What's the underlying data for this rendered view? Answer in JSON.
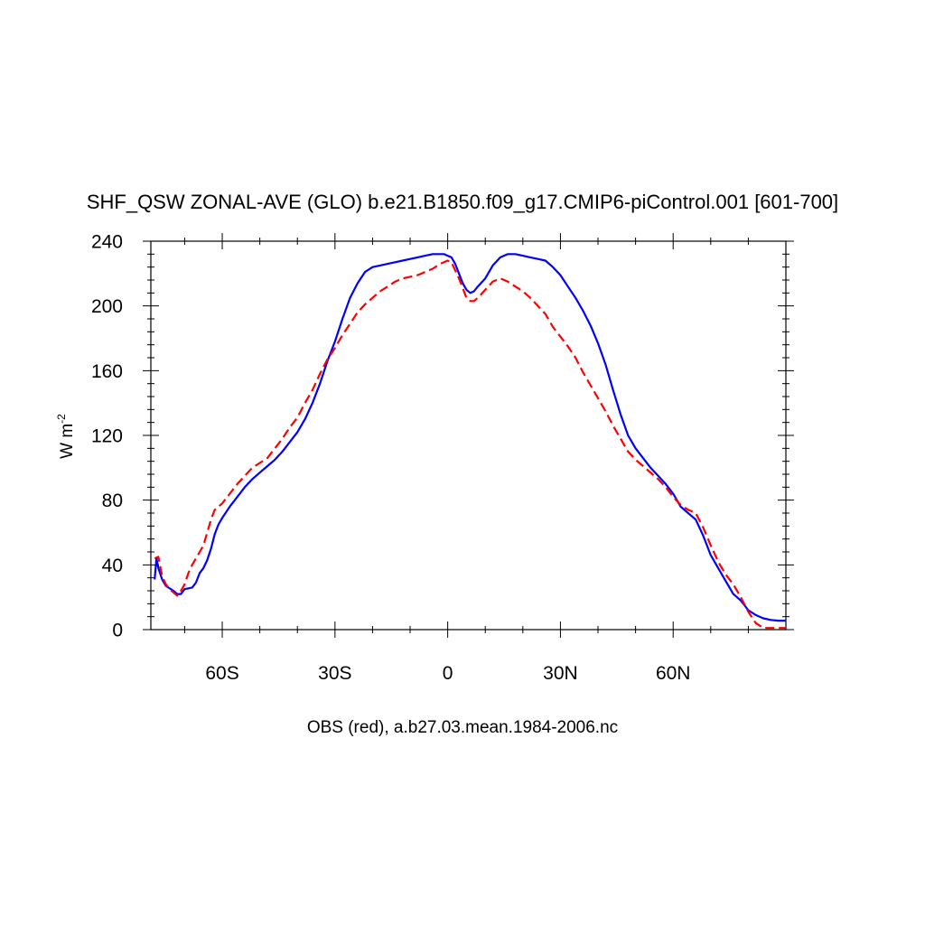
{
  "chart_data": {
    "type": "line",
    "title": "SHF_QSW ZONAL-AVE (GLO) b.e21.B1850.f09_g17.CMIP6-piControl.001 [601-700]",
    "xlabel": "OBS (red), a.b27.03.mean.1984-2006.nc",
    "ylabel": "W m",
    "ylabel_sup": "-2",
    "xlim": [
      -79,
      90
    ],
    "ylim": [
      0,
      240
    ],
    "x_ticks": [
      {
        "value": -60,
        "label": "60S"
      },
      {
        "value": -30,
        "label": "30S"
      },
      {
        "value": 0,
        "label": "0"
      },
      {
        "value": 30,
        "label": "30N"
      },
      {
        "value": 60,
        "label": "60N"
      }
    ],
    "y_ticks": [
      {
        "value": 0,
        "label": "0"
      },
      {
        "value": 40,
        "label": "40"
      },
      {
        "value": 80,
        "label": "80"
      },
      {
        "value": 120,
        "label": "120"
      },
      {
        "value": 160,
        "label": "160"
      },
      {
        "value": 200,
        "label": "200"
      },
      {
        "value": 240,
        "label": "240"
      }
    ],
    "grid": false,
    "legend": "none",
    "series": [
      {
        "color": "#0000ff",
        "dash": "solid",
        "points": [
          [
            -78,
            31
          ],
          [
            -77.5,
            44
          ],
          [
            -77,
            38
          ],
          [
            -76,
            31
          ],
          [
            -75,
            27
          ],
          [
            -73,
            24
          ],
          [
            -72,
            22
          ],
          [
            -71,
            22
          ],
          [
            -70,
            25
          ],
          [
            -68,
            26
          ],
          [
            -67,
            29
          ],
          [
            -66,
            35
          ],
          [
            -65,
            38
          ],
          [
            -64,
            43
          ],
          [
            -63,
            50
          ],
          [
            -62,
            59
          ],
          [
            -61,
            65
          ],
          [
            -60,
            69
          ],
          [
            -58,
            76
          ],
          [
            -56,
            82
          ],
          [
            -54,
            88
          ],
          [
            -52,
            93
          ],
          [
            -50,
            97
          ],
          [
            -48,
            101
          ],
          [
            -46,
            105
          ],
          [
            -44,
            110
          ],
          [
            -42,
            116
          ],
          [
            -40,
            122
          ],
          [
            -38,
            130
          ],
          [
            -36,
            140
          ],
          [
            -34,
            152
          ],
          [
            -32,
            166
          ],
          [
            -30,
            178
          ],
          [
            -28,
            192
          ],
          [
            -26,
            205
          ],
          [
            -24,
            214
          ],
          [
            -22,
            221
          ],
          [
            -20,
            224
          ],
          [
            -18,
            225
          ],
          [
            -16,
            226
          ],
          [
            -14,
            227
          ],
          [
            -12,
            228
          ],
          [
            -10,
            229
          ],
          [
            -8,
            230
          ],
          [
            -6,
            231
          ],
          [
            -4,
            232
          ],
          [
            -2,
            232
          ],
          [
            -1,
            232
          ],
          [
            0,
            231
          ],
          [
            1,
            230
          ],
          [
            2,
            226
          ],
          [
            3,
            220
          ],
          [
            4,
            214
          ],
          [
            5,
            210
          ],
          [
            6,
            208
          ],
          [
            7,
            209
          ],
          [
            8,
            212
          ],
          [
            10,
            217
          ],
          [
            12,
            225
          ],
          [
            14,
            230
          ],
          [
            16,
            232
          ],
          [
            18,
            232
          ],
          [
            20,
            231
          ],
          [
            22,
            230
          ],
          [
            24,
            229
          ],
          [
            26,
            228
          ],
          [
            28,
            224
          ],
          [
            30,
            219
          ],
          [
            32,
            212
          ],
          [
            34,
            205
          ],
          [
            36,
            197
          ],
          [
            38,
            188
          ],
          [
            40,
            177
          ],
          [
            42,
            164
          ],
          [
            44,
            148
          ],
          [
            46,
            133
          ],
          [
            48,
            120
          ],
          [
            50,
            112
          ],
          [
            52,
            106
          ],
          [
            54,
            100
          ],
          [
            56,
            95
          ],
          [
            58,
            90
          ],
          [
            60,
            84
          ],
          [
            62,
            76
          ],
          [
            64,
            72
          ],
          [
            66,
            68
          ],
          [
            68,
            58
          ],
          [
            70,
            46
          ],
          [
            72,
            38
          ],
          [
            74,
            30
          ],
          [
            76,
            22
          ],
          [
            78,
            18
          ],
          [
            80,
            12
          ],
          [
            82,
            9
          ],
          [
            84,
            7
          ],
          [
            86,
            6
          ],
          [
            88,
            5.5
          ],
          [
            90,
            5.5
          ]
        ]
      },
      {
        "color": "#ff0000",
        "dash": "dashed",
        "points": [
          [
            -78,
            44
          ],
          [
            -77,
            45
          ],
          [
            -76,
            33
          ],
          [
            -75,
            28
          ],
          [
            -74,
            25
          ],
          [
            -73,
            23
          ],
          [
            -72,
            21
          ],
          [
            -71,
            24
          ],
          [
            -70,
            28
          ],
          [
            -69,
            35
          ],
          [
            -68,
            40
          ],
          [
            -67,
            44
          ],
          [
            -66,
            48
          ],
          [
            -65,
            52
          ],
          [
            -64,
            60
          ],
          [
            -63,
            68
          ],
          [
            -62,
            74
          ],
          [
            -60,
            78
          ],
          [
            -58,
            84
          ],
          [
            -56,
            90
          ],
          [
            -54,
            95
          ],
          [
            -52,
            100
          ],
          [
            -50,
            103
          ],
          [
            -48,
            106
          ],
          [
            -46,
            112
          ],
          [
            -44,
            118
          ],
          [
            -42,
            125
          ],
          [
            -40,
            131
          ],
          [
            -38,
            140
          ],
          [
            -36,
            148
          ],
          [
            -34,
            158
          ],
          [
            -32,
            167
          ],
          [
            -30,
            174
          ],
          [
            -28,
            182
          ],
          [
            -26,
            189
          ],
          [
            -24,
            196
          ],
          [
            -22,
            201
          ],
          [
            -20,
            205
          ],
          [
            -18,
            209
          ],
          [
            -16,
            212
          ],
          [
            -14,
            215
          ],
          [
            -12,
            217
          ],
          [
            -10,
            218
          ],
          [
            -8,
            219
          ],
          [
            -6,
            221
          ],
          [
            -4,
            223
          ],
          [
            -2,
            226
          ],
          [
            0,
            228
          ],
          [
            1,
            227
          ],
          [
            2,
            222
          ],
          [
            3,
            217
          ],
          [
            4,
            211
          ],
          [
            5,
            205
          ],
          [
            6,
            203
          ],
          [
            7,
            203
          ],
          [
            8,
            205
          ],
          [
            10,
            210
          ],
          [
            12,
            215
          ],
          [
            14,
            217
          ],
          [
            16,
            215
          ],
          [
            18,
            212
          ],
          [
            20,
            209
          ],
          [
            22,
            205
          ],
          [
            24,
            200
          ],
          [
            26,
            195
          ],
          [
            28,
            187
          ],
          [
            30,
            181
          ],
          [
            32,
            175
          ],
          [
            34,
            168
          ],
          [
            36,
            159
          ],
          [
            38,
            151
          ],
          [
            40,
            143
          ],
          [
            42,
            135
          ],
          [
            44,
            126
          ],
          [
            46,
            118
          ],
          [
            48,
            110
          ],
          [
            50,
            105
          ],
          [
            52,
            101
          ],
          [
            54,
            97
          ],
          [
            56,
            93
          ],
          [
            58,
            88
          ],
          [
            60,
            82
          ],
          [
            62,
            77
          ],
          [
            64,
            74
          ],
          [
            66,
            72
          ],
          [
            68,
            63
          ],
          [
            70,
            52
          ],
          [
            72,
            42
          ],
          [
            74,
            34
          ],
          [
            76,
            28
          ],
          [
            78,
            20
          ],
          [
            80,
            11
          ],
          [
            82,
            4
          ],
          [
            84,
            1
          ],
          [
            86,
            1
          ],
          [
            88,
            1
          ],
          [
            90,
            1
          ]
        ]
      }
    ]
  }
}
